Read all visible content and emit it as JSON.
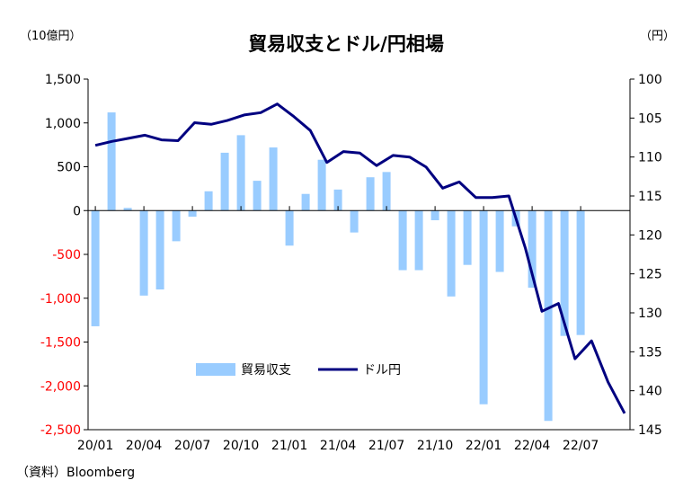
{
  "chart_data": {
    "type": "bar+line",
    "title": "貿易収支とドル/円相場",
    "left_unit": "（10億円）",
    "right_unit": "（円）",
    "source": "（資料）Bloomberg",
    "x_ticks": [
      "20/01",
      "20/04",
      "20/07",
      "20/10",
      "21/01",
      "21/04",
      "21/07",
      "21/10",
      "22/01",
      "22/04",
      "22/07"
    ],
    "left_axis": {
      "min": -2500,
      "max": 1500,
      "step": 500,
      "tick_labels": [
        "1,500",
        "1,000",
        "500",
        "0",
        "-500",
        "-1,000",
        "-1,500",
        "-2,000",
        "-2,500"
      ],
      "negative_color": "#ff0000"
    },
    "right_axis": {
      "min": 100,
      "max": 145,
      "step": 5,
      "inverted": true,
      "tick_labels": [
        "100",
        "105",
        "110",
        "115",
        "120",
        "125",
        "130",
        "135",
        "140",
        "145"
      ]
    },
    "series": [
      {
        "name": "貿易収支",
        "type": "bar",
        "axis": "left",
        "color": "#99ccff",
        "values": [
          -1320,
          1120,
          30,
          -970,
          -900,
          -350,
          -70,
          220,
          660,
          860,
          340,
          720,
          -400,
          190,
          580,
          240,
          -250,
          380,
          440,
          -680,
          -680,
          -110,
          -980,
          -620,
          -2210,
          -700,
          -180,
          -880,
          -2400,
          -1430,
          -1420
        ]
      },
      {
        "name": "ドル円",
        "type": "line",
        "axis": "right",
        "color": "#000080",
        "values": [
          108.5,
          108.0,
          107.6,
          107.2,
          107.8,
          107.9,
          105.6,
          105.8,
          105.3,
          104.6,
          104.3,
          103.2,
          104.8,
          106.6,
          110.7,
          109.3,
          109.5,
          111.1,
          109.8,
          110.0,
          111.3,
          114.0,
          113.2,
          115.2,
          115.2,
          115.0,
          121.7,
          129.8,
          128.8,
          135.9,
          133.6,
          138.9,
          142.9
        ]
      }
    ],
    "legend": {
      "placement": "bottom-center",
      "bar_label": "貿易収支",
      "line_label": "ドル円"
    }
  }
}
